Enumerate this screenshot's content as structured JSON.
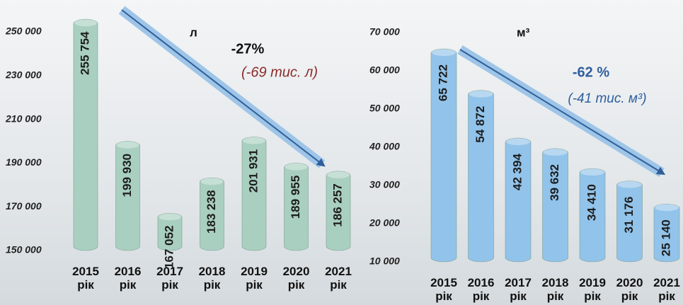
{
  "chart_data": [
    {
      "type": "bar",
      "unit": "л",
      "annotations": [
        "-27%",
        "(-69 тис. л)"
      ],
      "categories": [
        "2015 рік",
        "2016 рік",
        "2017 рік",
        "2018 рік",
        "2019 рік",
        "2020 рік",
        "2021 рік"
      ],
      "values": [
        255754,
        199930,
        167052,
        183238,
        201931,
        189955,
        186257
      ],
      "value_labels": [
        "255 754",
        "199 930",
        "167 052",
        "183 238",
        "201 931",
        "189 955",
        "186 257"
      ],
      "color": "#a9cfc0",
      "ylim": [
        150000,
        250000
      ],
      "yticks": [
        {
          "value": 150000,
          "label": "150 000"
        },
        {
          "value": 170000,
          "label": "170 000"
        },
        {
          "value": 190000,
          "label": "190 000"
        },
        {
          "value": 210000,
          "label": "210 000"
        },
        {
          "value": 230000,
          "label": "230 000"
        },
        {
          "value": 250000,
          "label": "250 000"
        }
      ]
    },
    {
      "type": "bar",
      "unit": "м³",
      "annotations": [
        "-62 %",
        "(-41 тис. м³)"
      ],
      "categories": [
        "2015 рік",
        "2016 рік",
        "2017 рік",
        "2018 рік",
        "2019 рік",
        "2020 рік",
        "2021 рік"
      ],
      "values": [
        65722,
        54872,
        42394,
        39632,
        34410,
        31176,
        25140
      ],
      "value_labels": [
        "65 722",
        "54 872",
        "42 394",
        "39 632",
        "34 410",
        "31 176",
        "25 140"
      ],
      "color": "#92c3ea",
      "ylim": [
        10000,
        70000
      ],
      "yticks": [
        {
          "value": 10000,
          "label": "10 000"
        },
        {
          "value": 20000,
          "label": "20 000"
        },
        {
          "value": 30000,
          "label": "30 000"
        },
        {
          "value": 40000,
          "label": "40 000"
        },
        {
          "value": 50000,
          "label": "50 000"
        },
        {
          "value": 60000,
          "label": "60 000"
        },
        {
          "value": 70000,
          "label": "70 000"
        }
      ]
    }
  ]
}
